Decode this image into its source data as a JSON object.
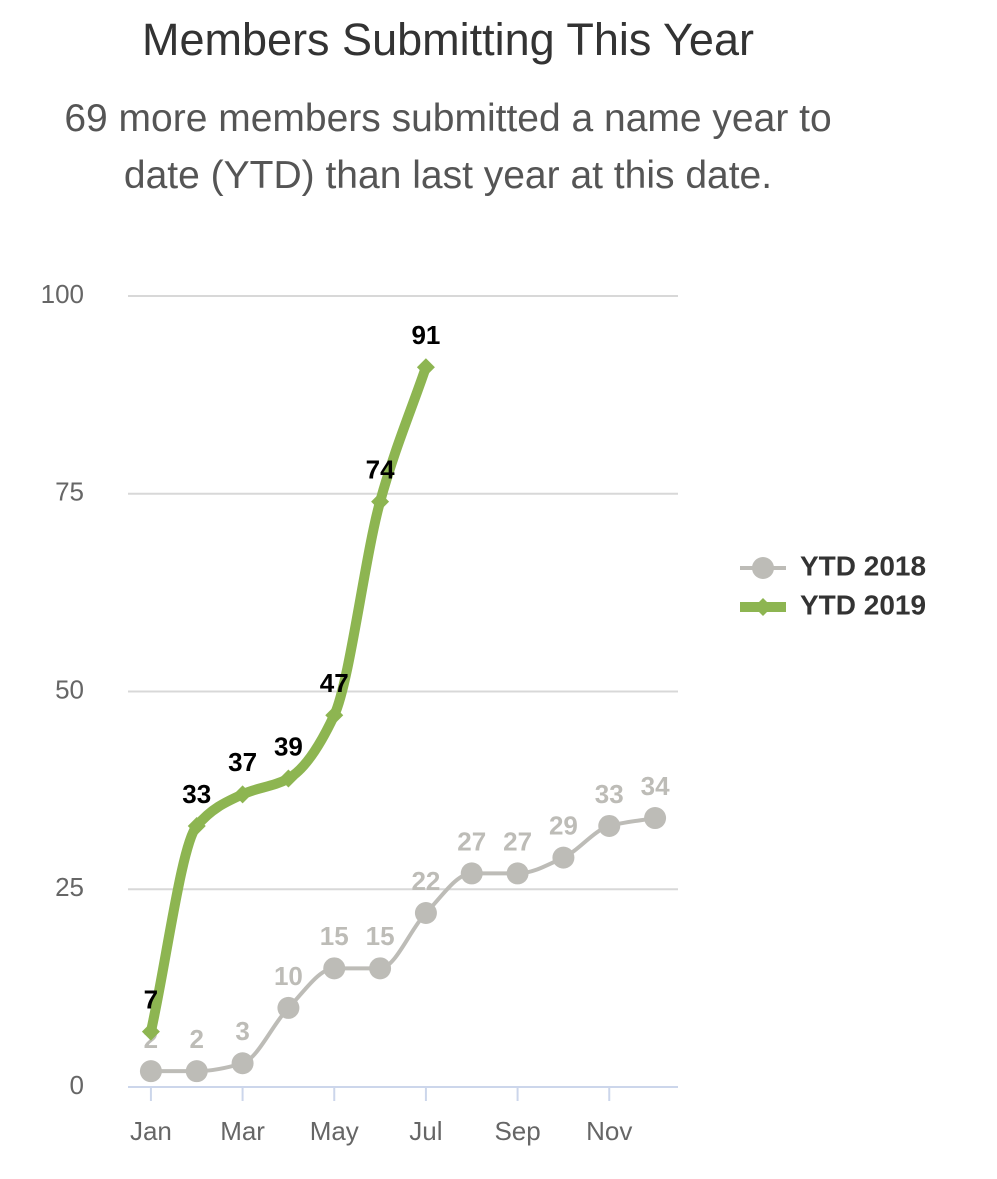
{
  "chart_data": {
    "type": "line",
    "title": "Members Submitting This Year",
    "subtitle": "69 more members submitted a name year to date (YTD) than last year at this date.",
    "categories": [
      "Jan",
      null,
      "Mar",
      null,
      "May",
      null,
      "Jul",
      null,
      "Sep",
      null,
      "Nov",
      null
    ],
    "series": [
      {
        "name": "YTD 2018",
        "color": "#bdbcb7",
        "marker": "circle",
        "values": [
          2,
          2,
          3,
          10,
          15,
          15,
          22,
          27,
          27,
          29,
          33,
          34
        ]
      },
      {
        "name": "YTD 2019",
        "color": "#8db551",
        "marker": "diamond",
        "values": [
          7,
          33,
          37,
          39,
          47,
          74,
          91,
          null,
          null,
          null,
          null,
          null
        ]
      }
    ],
    "ylim": [
      0,
      100
    ],
    "yticks": [
      0,
      25,
      50,
      75,
      100
    ],
    "grid": true,
    "legend": "right"
  }
}
